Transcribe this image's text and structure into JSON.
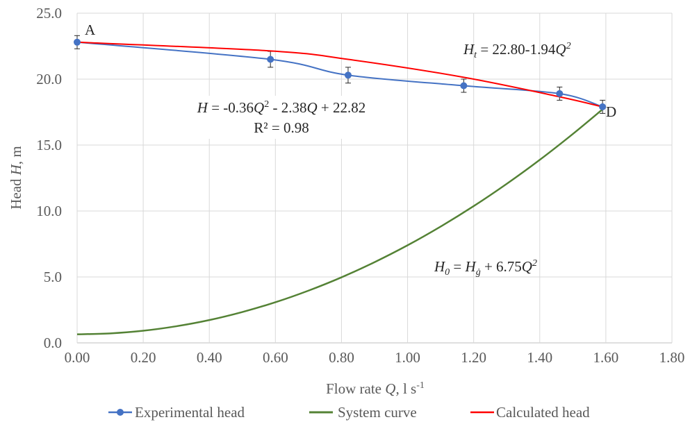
{
  "chart_data": {
    "type": "line",
    "xlabel": {
      "prefix": "Flow rate ",
      "var": "Q",
      "unit": ", l s",
      "unit_sup": "-1"
    },
    "ylabel": {
      "prefix": "Head ",
      "var": "H",
      "unit": ", m"
    },
    "xlim": [
      0,
      1.8
    ],
    "ylim": [
      0,
      25
    ],
    "x_ticks": [
      "0.00",
      "0.20",
      "0.40",
      "0.60",
      "0.80",
      "1.00",
      "1.20",
      "1.40",
      "1.60",
      "1.80"
    ],
    "y_ticks": [
      "0.0",
      "5.0",
      "10.0",
      "15.0",
      "20.0",
      "25.0"
    ],
    "grid": true,
    "legend_position": "bottom",
    "series": [
      {
        "name": "Experimental head",
        "color": "#4472c4",
        "marker": "circle",
        "x": [
          0.0,
          0.585,
          0.82,
          1.17,
          1.46,
          1.59
        ],
        "y": [
          22.8,
          21.5,
          20.3,
          19.5,
          18.9,
          17.9
        ],
        "error": [
          0.5,
          0.6,
          0.6,
          0.5,
          0.5,
          0.5
        ]
      },
      {
        "name": "System curve",
        "color": "#548235",
        "x": [
          0.0,
          0.1,
          0.2,
          0.3,
          0.4,
          0.5,
          0.6,
          0.7,
          0.8,
          0.9,
          1.0,
          1.1,
          1.2,
          1.3,
          1.4,
          1.5,
          1.59
        ],
        "y": [
          0.65,
          0.72,
          0.92,
          1.26,
          1.73,
          2.34,
          3.08,
          3.96,
          4.97,
          6.12,
          7.4,
          8.82,
          10.37,
          12.06,
          13.88,
          15.84,
          17.71
        ]
      },
      {
        "name": "Calculated head",
        "color": "#ff0000",
        "x": [
          0.0,
          0.585,
          0.82,
          1.17,
          1.46,
          1.59
        ],
        "y": [
          22.8,
          22.14,
          21.5,
          20.14,
          18.66,
          17.9
        ]
      }
    ],
    "annotations": [
      {
        "id": "label_a",
        "text": "A"
      },
      {
        "id": "label_d",
        "text": "D"
      },
      {
        "id": "eq_experimental",
        "lines": [
          "H = -0.36Q² - 2.38Q + 22.82",
          "R² = 0.98"
        ]
      },
      {
        "id": "eq_calculated",
        "parts": {
          "lead": "H",
          "sub": "t",
          "mid": " = 22.80-1.94",
          "var": "Q",
          "sup": "2"
        }
      },
      {
        "id": "eq_system",
        "parts": {
          "lead": "H",
          "sub": "0",
          "mid": " = ",
          "var2": "H",
          "sub2": "ġ",
          "rest": " + 6.75",
          "var": "Q",
          "sup": "2"
        }
      }
    ]
  }
}
